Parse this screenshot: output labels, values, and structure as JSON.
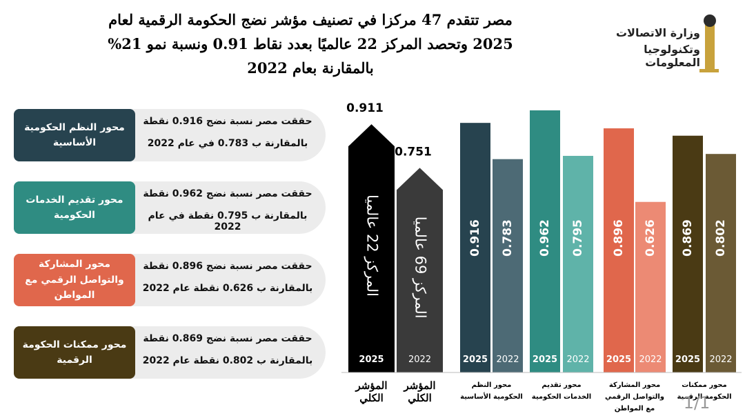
{
  "header": {
    "title_lines": [
      "مصر تتقدم 47 مركزا في تصنيف مؤشر نضج الحكومة الرقمية لعام",
      "2025 وتحصد المركز 22 عالميًا بعدد نقاط 0.91  ونسبة نمو 21%",
      "بالمقارنة بعام 2022"
    ],
    "logo_lines": [
      "وزارة الاتصالات",
      "وتكنولوجيا المعلومات"
    ]
  },
  "panels": [
    {
      "label": "محور النظم الحكومية الأساسية",
      "color": "#27434f",
      "lines": [
        "حققت مصر نسبة نضج 0.916 نقطة",
        "بالمقارنة ب 0.783 في عام 2022"
      ]
    },
    {
      "label": "محور تقديم الخدمات الحكومية",
      "color": "#2f8c82",
      "lines": [
        "حققت مصر نسبة نضج 0.962 نقطة",
        "بالمقارنة ب 0.795 نقطة في عام 2022"
      ]
    },
    {
      "label": "محور المشاركة والتواصل الرقمي مع المواطن",
      "color": "#e0674c",
      "lines": [
        "حققت مصر نسبة نضج 0.896 نقطة",
        "بالمقارنة ب 0.626 نقطة عام 2022"
      ]
    },
    {
      "label": "محور ممكنات الحكومة الرقمية",
      "color": "#4a3a14",
      "lines": [
        "حققت مصر نسبة نضج 0.869 نقطة",
        "بالمقارنة ب 0.802 نقطة عام 2022"
      ]
    }
  ],
  "chart_data": {
    "type": "bar",
    "categories": [
      "المؤشر الكلي",
      "محور النظم الحكومية الأساسية",
      "محور تقديم الخدمات الحكومية",
      "محور المشاركة والتواصل الرقمي مع المواطن",
      "محور ممكنات الحكومة الرقمية"
    ],
    "series": [
      {
        "name": "2025",
        "colors": [
          "#000000",
          "#27434f",
          "#2f8c82",
          "#e0674c",
          "#4a3a14"
        ],
        "values": [
          0.911,
          0.916,
          0.962,
          0.896,
          0.869
        ]
      },
      {
        "name": "2022",
        "colors": [
          "#3a3a3a",
          "#4d6a75",
          "#5fb3a9",
          "#ec8a74",
          "#6b5a35"
        ],
        "values": [
          0.751,
          0.783,
          0.795,
          0.626,
          0.802
        ]
      }
    ],
    "annotations": [
      "المركز 22 عالميا",
      "المركز 69 عالميا"
    ]
  },
  "footer": {
    "page": "1/1"
  }
}
